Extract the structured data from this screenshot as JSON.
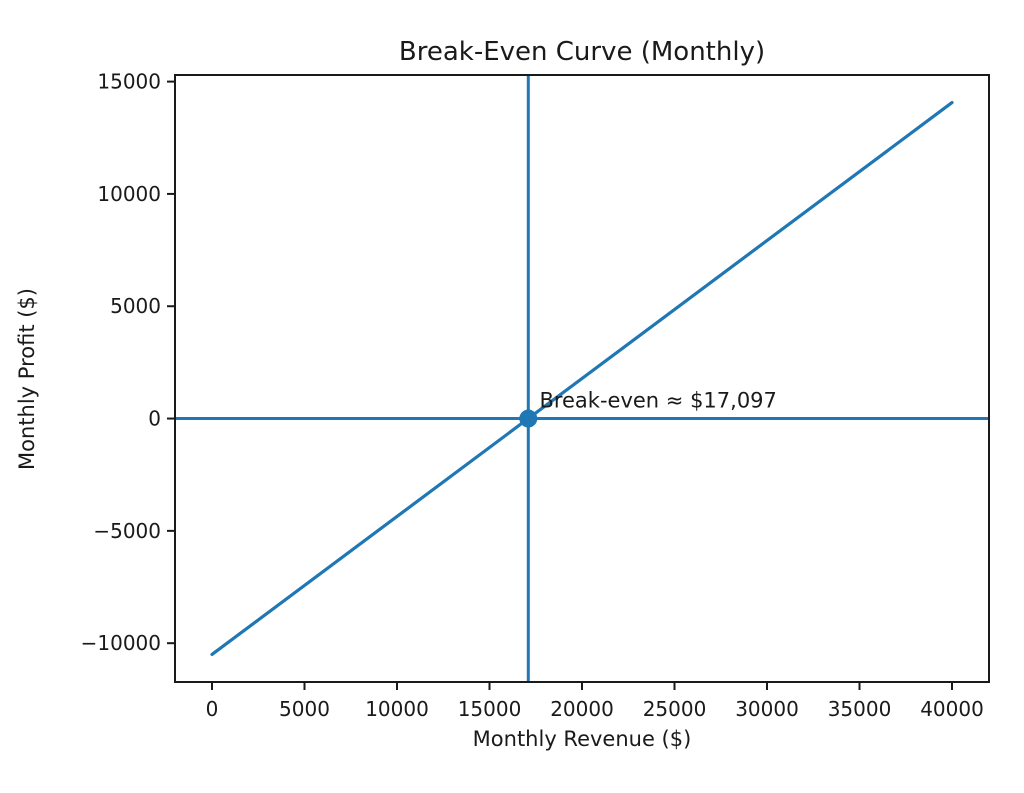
{
  "figure": {
    "background": "#ffffff",
    "spine_color": "#1a1a1a",
    "text_color": "#1a1a1a"
  },
  "chart_data": {
    "type": "line",
    "title": "Break-Even Curve (Monthly)",
    "xlabel": "Monthly Revenue ($)",
    "ylabel": "Monthly Profit ($)",
    "xlim": [
      -2000,
      42000
    ],
    "ylim": [
      -11728,
      15294
    ],
    "xticks": [
      0,
      5000,
      10000,
      15000,
      20000,
      25000,
      30000,
      35000,
      40000
    ],
    "yticks": [
      -10000,
      -5000,
      0,
      5000,
      10000,
      15000
    ],
    "grid": false,
    "legend": null,
    "line_color": "#1f77b4",
    "series": [
      {
        "name": "profit-line",
        "kind": "line",
        "x": [
          0,
          40000
        ],
        "y": [
          -10500,
          14066
        ]
      },
      {
        "name": "zero-profit-hline",
        "kind": "hline",
        "y": 0
      },
      {
        "name": "break-even-vline",
        "kind": "vline",
        "x": 17097
      }
    ],
    "break_even_point": {
      "x": 17097,
      "y": 0
    },
    "annotation": {
      "text": "Break-even ≈ $17,097",
      "x": 17700,
      "y": 800
    }
  }
}
